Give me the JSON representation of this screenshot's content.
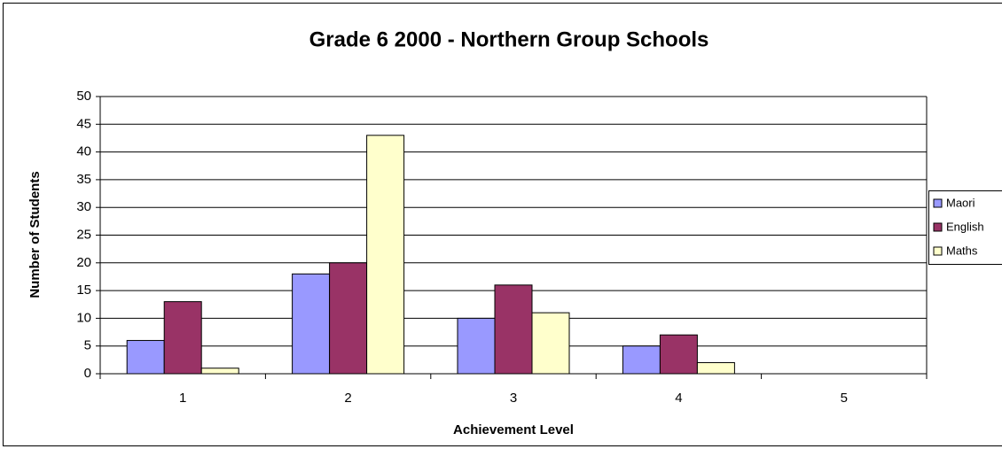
{
  "chart_data": {
    "type": "bar",
    "title": "Grade 6 2000 - Northern Group Schools",
    "x_label": "Achievement Level",
    "y_label": "Number of Students",
    "categories": [
      "1",
      "2",
      "3",
      "4",
      "5"
    ],
    "series": [
      {
        "name": "Maori",
        "color": "#9999ff",
        "values": [
          6,
          18,
          10,
          5,
          0
        ]
      },
      {
        "name": "English",
        "color": "#993366",
        "values": [
          13,
          20,
          16,
          7,
          0
        ]
      },
      {
        "name": "Maths",
        "color": "#ffffcc",
        "values": [
          1,
          43,
          11,
          2,
          0
        ]
      }
    ],
    "ylim": [
      0,
      50
    ],
    "yticks": [
      0,
      5,
      10,
      15,
      20,
      25,
      30,
      35,
      40,
      45,
      50
    ],
    "grid": true,
    "legend": "right"
  }
}
